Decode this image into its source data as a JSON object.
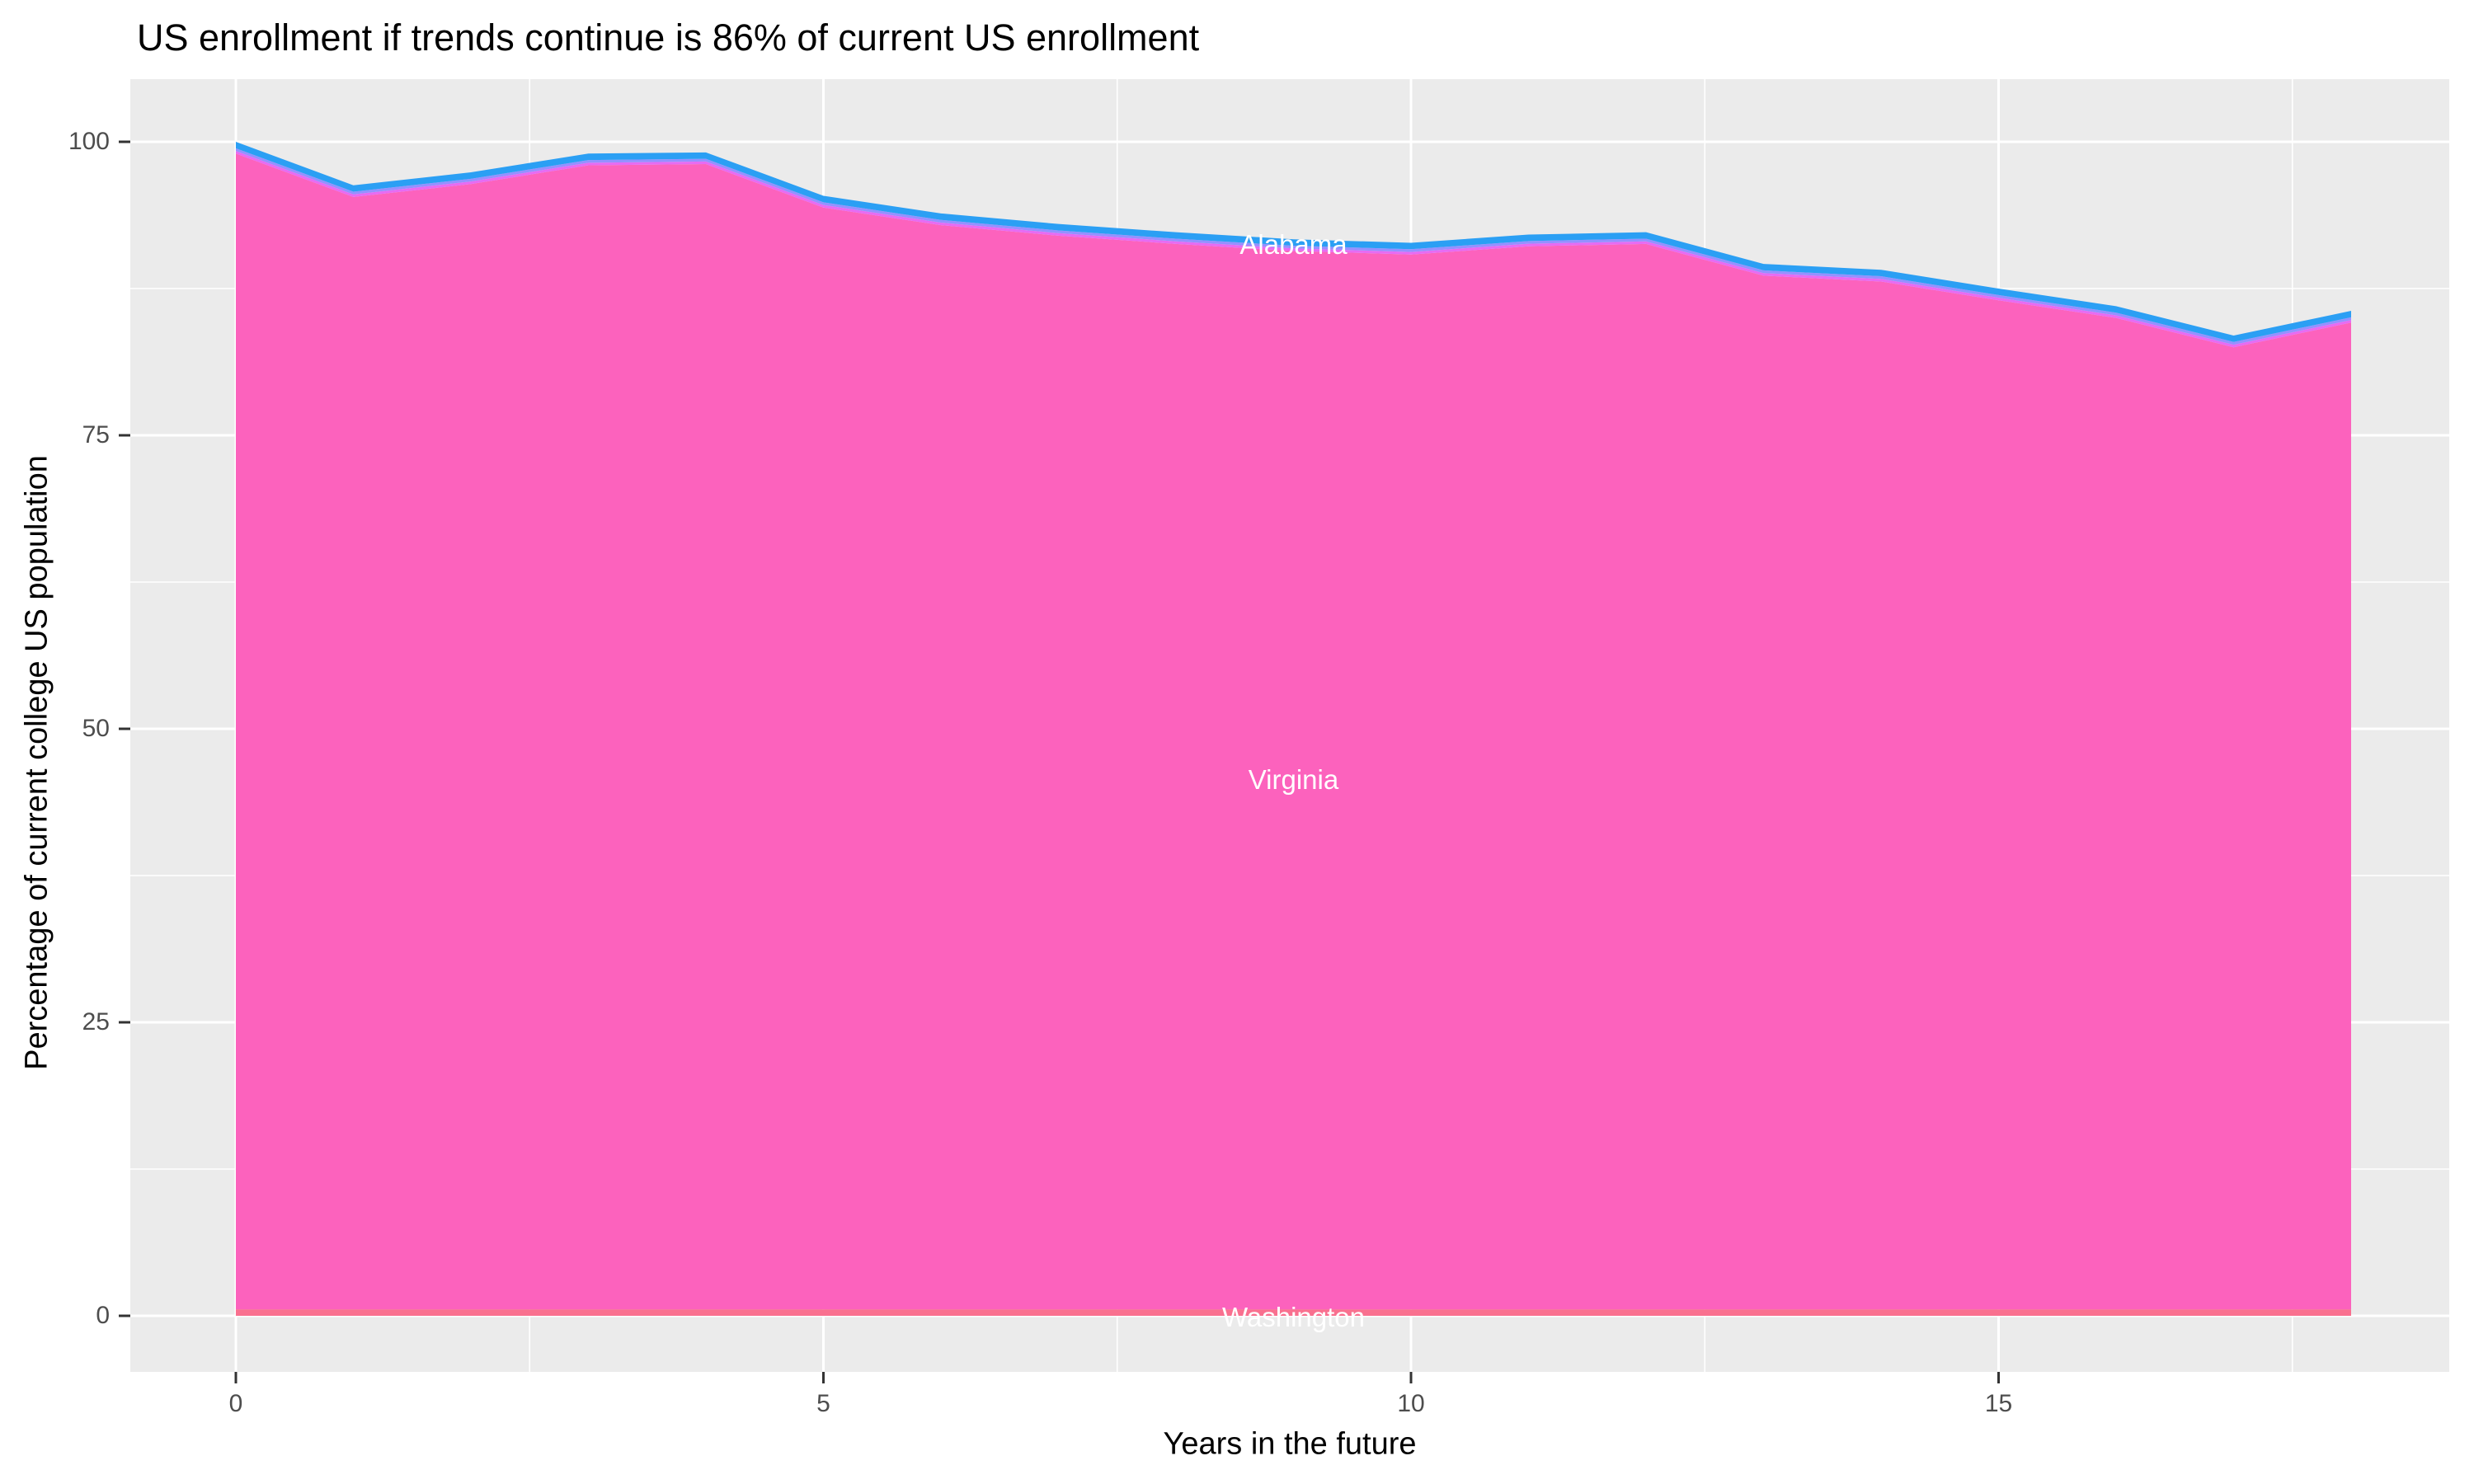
{
  "title": "US enrollment if trends continue is 86% of current US enrollment",
  "axes": {
    "x_title": "Years in the future",
    "y_title": "Percentage of current college US population"
  },
  "colors": {
    "background": "#FFFFFF",
    "panel": "#EBEBEB",
    "gridline": "#FFFFFF",
    "tick_mark": "#333333",
    "tick_label": "#4D4D4D",
    "title_text": "#000000",
    "area_label_text": "#FFFFFF",
    "alabama": "#2B9FF4",
    "thin_band_upper": "#9590FF",
    "thin_band_lower": "#E76BF3",
    "virginia": "#FC62BD",
    "washington": "#F9708F"
  },
  "chart_data": {
    "type": "area",
    "stacked": true,
    "title": "US enrollment if trends continue is 86% of current US enrollment",
    "xlabel": "Years in the future",
    "ylabel": "Percentage of current college US population",
    "x": [
      0,
      1,
      2,
      3,
      4,
      5,
      6,
      7,
      8,
      9,
      10,
      11,
      12,
      13,
      14,
      15,
      16,
      17,
      18
    ],
    "x_ticks": [
      0,
      5,
      10,
      15
    ],
    "y_ticks": [
      0,
      25,
      50,
      75,
      100
    ],
    "xlim": [
      0,
      18
    ],
    "ylim": [
      0,
      100
    ],
    "grid": "white major and minor gridlines on gray panel, legend none",
    "total_top_edge": [
      100.0,
      96.3,
      97.4,
      99.0,
      99.1,
      95.4,
      93.9,
      93.0,
      92.3,
      91.7,
      91.4,
      92.1,
      92.3,
      89.6,
      89.1,
      87.5,
      86.0,
      83.5,
      85.6
    ],
    "series": [
      {
        "name": "Alabama",
        "color": "#2B9FF4",
        "values": [
          0.55,
          0.55,
          0.55,
          0.55,
          0.55,
          0.55,
          0.55,
          0.55,
          0.55,
          0.55,
          0.55,
          0.55,
          0.55,
          0.55,
          0.55,
          0.55,
          0.55,
          0.55,
          0.55
        ]
      },
      {
        "name": "unlabeled-thin-band-upper",
        "color": "#9590FF",
        "values": [
          0.23,
          0.23,
          0.23,
          0.23,
          0.23,
          0.23,
          0.23,
          0.23,
          0.23,
          0.23,
          0.23,
          0.23,
          0.23,
          0.23,
          0.23,
          0.23,
          0.23,
          0.23,
          0.23
        ]
      },
      {
        "name": "unlabeled-thin-band-lower",
        "color": "#E76BF3",
        "values": [
          0.22,
          0.22,
          0.22,
          0.22,
          0.22,
          0.22,
          0.22,
          0.22,
          0.22,
          0.22,
          0.22,
          0.22,
          0.22,
          0.22,
          0.22,
          0.22,
          0.22,
          0.22,
          0.22
        ]
      },
      {
        "name": "Virginia",
        "color": "#FC62BD",
        "values": [
          98.45,
          94.75,
          95.85,
          97.45,
          97.55,
          93.85,
          92.35,
          91.45,
          90.75,
          90.15,
          89.85,
          90.55,
          90.75,
          88.05,
          87.55,
          85.95,
          84.45,
          81.95,
          84.05
        ]
      },
      {
        "name": "Washington",
        "color": "#F9708F",
        "values": [
          0.55,
          0.55,
          0.55,
          0.55,
          0.55,
          0.55,
          0.55,
          0.55,
          0.55,
          0.55,
          0.55,
          0.55,
          0.55,
          0.55,
          0.55,
          0.55,
          0.55,
          0.55,
          0.55
        ]
      }
    ],
    "area_labels": [
      {
        "text": "Alabama",
        "year": 9,
        "pct": 91.2
      },
      {
        "text": "Virginia",
        "year": 9,
        "pct": 45.65
      },
      {
        "text": "Washington",
        "year": 9,
        "pct": -0.14
      }
    ]
  }
}
